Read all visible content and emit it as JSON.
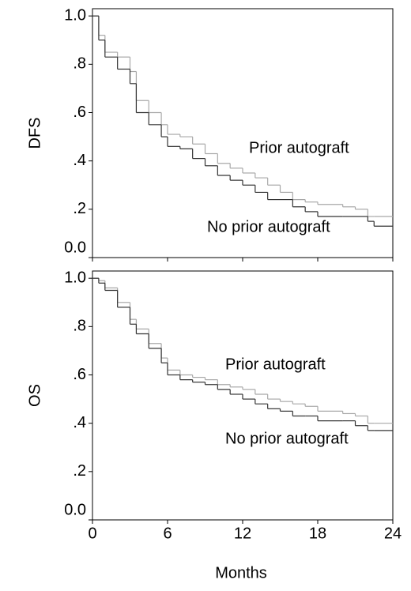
{
  "chart_data": [
    {
      "type": "line",
      "step": "post",
      "y_label": "DFS",
      "x": [
        0,
        0.5,
        1,
        2,
        3,
        3.5,
        4.5,
        5.5,
        6,
        7,
        8,
        9,
        10,
        11,
        12,
        13,
        14,
        15,
        16,
        17,
        18,
        20,
        21,
        22,
        22.5,
        24
      ],
      "series": [
        {
          "name": "Prior autograft",
          "color": "#a8a8a8",
          "values": [
            1,
            0.92,
            0.85,
            0.83,
            0.77,
            0.65,
            0.6,
            0.55,
            0.51,
            0.5,
            0.47,
            0.43,
            0.39,
            0.37,
            0.35,
            0.33,
            0.3,
            0.27,
            0.24,
            0.23,
            0.22,
            0.21,
            0.2,
            0.17,
            0.17,
            0.17
          ]
        },
        {
          "name": "No prior autograft",
          "color": "#333333",
          "values": [
            1,
            0.9,
            0.83,
            0.78,
            0.72,
            0.6,
            0.55,
            0.5,
            0.46,
            0.45,
            0.41,
            0.38,
            0.34,
            0.32,
            0.3,
            0.27,
            0.24,
            0.24,
            0.21,
            0.19,
            0.17,
            0.17,
            0.17,
            0.15,
            0.13,
            0.13
          ]
        }
      ],
      "xlim": [
        0,
        24
      ],
      "xticks": [
        0,
        6,
        12,
        18,
        24
      ],
      "ylim": [
        0,
        1.03
      ],
      "yticks": [
        {
          "value": 0,
          "label": "0.0"
        },
        {
          "value": 0.2,
          "label": ".2"
        },
        {
          "value": 0.4,
          "label": ".4"
        },
        {
          "value": 0.6,
          "label": ".6"
        },
        {
          "value": 0.8,
          "label": ".8"
        },
        {
          "value": 1,
          "label": "1.0"
        }
      ]
    },
    {
      "type": "line",
      "step": "post",
      "y_label": "OS",
      "x_label": "Months",
      "x_tick_labels": true,
      "x": [
        0,
        0.5,
        1,
        2,
        3,
        3.5,
        4.5,
        5.5,
        6,
        7,
        8,
        9,
        10,
        11,
        12,
        13,
        14,
        15,
        16,
        17,
        18,
        20,
        21,
        22,
        22.5,
        24
      ],
      "series": [
        {
          "name": "Prior autograft",
          "color": "#a8a8a8",
          "values": [
            1,
            0.99,
            0.96,
            0.9,
            0.83,
            0.79,
            0.73,
            0.67,
            0.62,
            0.6,
            0.59,
            0.58,
            0.56,
            0.55,
            0.54,
            0.52,
            0.5,
            0.49,
            0.48,
            0.47,
            0.45,
            0.44,
            0.43,
            0.4,
            0.4,
            0.4
          ]
        },
        {
          "name": "No prior autograft",
          "color": "#333333",
          "values": [
            1,
            0.98,
            0.95,
            0.88,
            0.81,
            0.77,
            0.71,
            0.65,
            0.6,
            0.58,
            0.57,
            0.56,
            0.54,
            0.52,
            0.5,
            0.48,
            0.46,
            0.45,
            0.43,
            0.43,
            0.41,
            0.41,
            0.39,
            0.37,
            0.37,
            0.37
          ]
        }
      ],
      "xlim": [
        0,
        24
      ],
      "xticks": [
        0,
        6,
        12,
        18,
        24
      ],
      "ylim": [
        0,
        1.03
      ],
      "yticks": [
        {
          "value": 0,
          "label": "0.0"
        },
        {
          "value": 0.2,
          "label": ".2"
        },
        {
          "value": 0.4,
          "label": ".4"
        },
        {
          "value": 0.6,
          "label": ".6"
        },
        {
          "value": 0.8,
          "label": ".8"
        },
        {
          "value": 1,
          "label": "1.0"
        }
      ]
    }
  ]
}
